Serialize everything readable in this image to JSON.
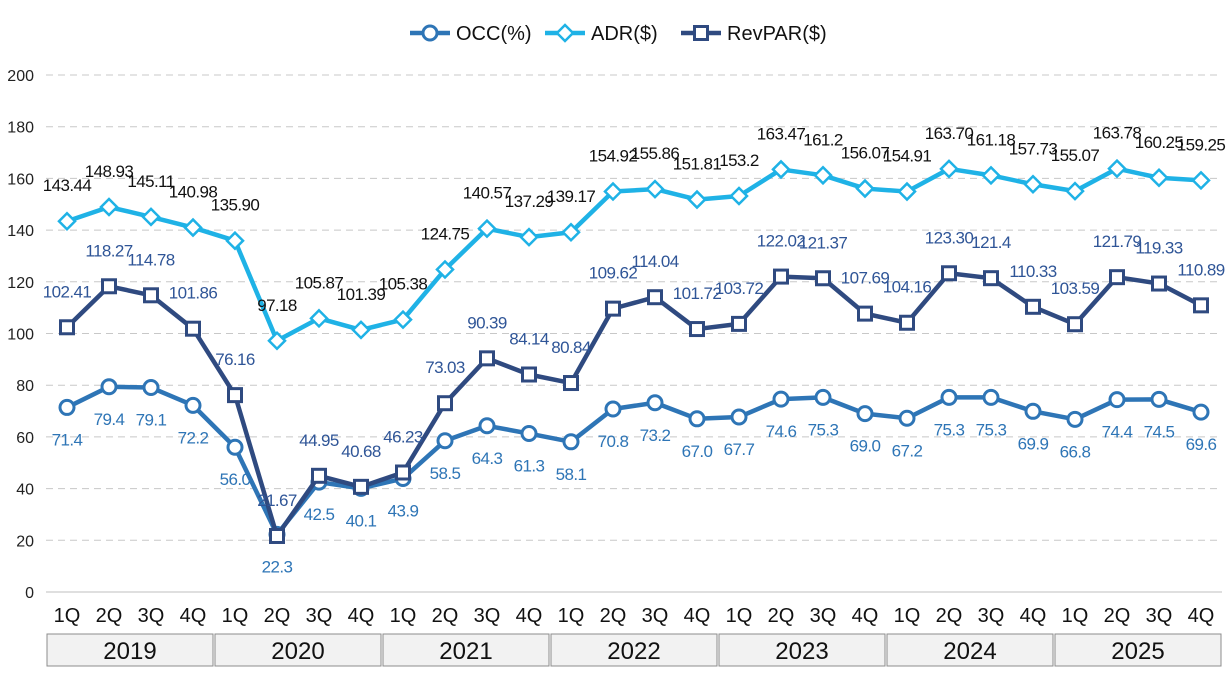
{
  "chart_data": {
    "type": "line",
    "title": "",
    "xlabel": "",
    "ylabel": "",
    "ylim": [
      0,
      200
    ],
    "yticks": [
      0,
      20,
      40,
      60,
      80,
      100,
      120,
      140,
      160,
      180,
      200
    ],
    "grid": true,
    "legend_position": "top-center",
    "quarters": [
      "1Q",
      "2Q",
      "3Q",
      "4Q"
    ],
    "years": [
      "2019",
      "2020",
      "2021",
      "2022",
      "2023",
      "2024",
      "2025"
    ],
    "series": [
      {
        "name": "OCC(%)",
        "key": "occ",
        "color": "#2e75b6",
        "marker": "circle",
        "values": [
          71.4,
          79.4,
          79.1,
          72.2,
          56.0,
          22.3,
          42.5,
          40.1,
          43.9,
          58.5,
          64.3,
          61.3,
          58.1,
          70.8,
          73.2,
          67.0,
          67.7,
          74.6,
          75.3,
          69.0,
          67.2,
          75.3,
          75.3,
          69.9,
          66.8,
          74.4,
          74.5,
          69.6
        ],
        "labels": [
          "71.4",
          "79.4",
          "79.1",
          "72.2",
          "56.0",
          "22.3",
          "42.5",
          "40.1",
          "43.9",
          "58.5",
          "64.3",
          "61.3",
          "58.1",
          "70.8",
          "73.2",
          "67.0",
          "67.7",
          "74.6",
          "75.3",
          "69.0",
          "67.2",
          "75.3",
          "75.3",
          "69.9",
          "66.8",
          "74.4",
          "74.5",
          "69.6"
        ]
      },
      {
        "name": "ADR($)",
        "key": "adr",
        "color": "#1fb2e6",
        "marker": "diamond",
        "values": [
          143.44,
          148.93,
          145.11,
          140.98,
          135.9,
          97.18,
          105.87,
          101.39,
          105.38,
          124.75,
          140.57,
          137.29,
          139.17,
          154.92,
          155.86,
          151.81,
          153.2,
          163.47,
          161.2,
          156.07,
          154.91,
          163.7,
          161.18,
          157.73,
          155.07,
          163.78,
          160.25,
          159.25
        ],
        "labels": [
          "143.44",
          "148.93",
          "145.11",
          "140.98",
          "135.90",
          "97.18",
          "105.87",
          "101.39",
          "105.38",
          "124.75",
          "140.57",
          "137.29",
          "139.17",
          "154.92",
          "155.86",
          "151.81",
          "153.2",
          "163.47",
          "161.2",
          "156.07",
          "154.91",
          "163.70",
          "161.18",
          "157.73",
          "155.07",
          "163.78",
          "160.25",
          "159.25"
        ]
      },
      {
        "name": "RevPAR($)",
        "key": "rev",
        "color": "#2f4a80",
        "marker": "square",
        "values": [
          102.41,
          118.27,
          114.78,
          101.86,
          76.16,
          21.67,
          44.95,
          40.68,
          46.23,
          73.03,
          90.39,
          84.14,
          80.84,
          109.62,
          114.04,
          101.72,
          103.72,
          122.02,
          121.37,
          107.69,
          104.16,
          123.3,
          121.4,
          110.33,
          103.59,
          121.79,
          119.33,
          110.89
        ],
        "labels": [
          "102.41",
          "118.27",
          "114.78",
          "101.86",
          "76.16",
          "21.67",
          "44.95",
          "40.68",
          "46.23",
          "73.03",
          "90.39",
          "84.14",
          "80.84",
          "109.62",
          "114.04",
          "101.72",
          "103.72",
          "122.02",
          "121.37",
          "107.69",
          "104.16",
          "123.30",
          "121.4",
          "110.33",
          "103.59",
          "121.79",
          "119.33",
          "110.89"
        ]
      }
    ]
  }
}
